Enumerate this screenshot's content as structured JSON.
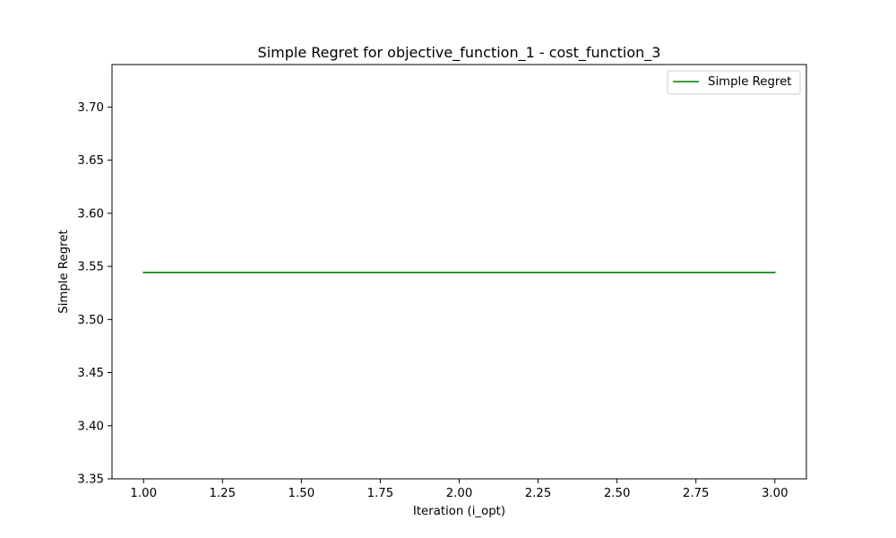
{
  "chart_data": {
    "type": "line",
    "title": "Simple Regret for objective_function_1 - cost_function_3",
    "xlabel": "Iteration (i_opt)",
    "ylabel": "Simple Regret",
    "xlim": [
      0.9,
      3.1
    ],
    "ylim": [
      3.35,
      3.74
    ],
    "xticks": [
      1.0,
      1.25,
      1.5,
      1.75,
      2.0,
      2.25,
      2.5,
      2.75,
      3.0
    ],
    "xtick_labels": [
      "1.00",
      "1.25",
      "1.50",
      "1.75",
      "2.00",
      "2.25",
      "2.50",
      "2.75",
      "3.00"
    ],
    "yticks": [
      3.35,
      3.4,
      3.45,
      3.5,
      3.55,
      3.6,
      3.65,
      3.7
    ],
    "ytick_labels": [
      "3.35",
      "3.40",
      "3.45",
      "3.50",
      "3.55",
      "3.60",
      "3.65",
      "3.70"
    ],
    "grid": false,
    "legend_position": "top-right",
    "series": [
      {
        "name": "Simple Regret",
        "color": "#008000",
        "x": [
          1,
          2,
          3
        ],
        "y": [
          3.5443,
          3.5443,
          3.5443
        ]
      }
    ]
  }
}
